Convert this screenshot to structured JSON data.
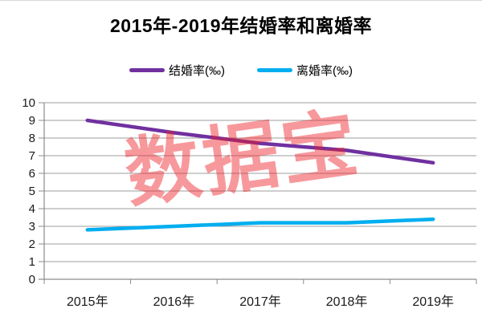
{
  "watermark": "数据宝",
  "chart_data": {
    "type": "line",
    "title": "2015年-2019年结婚率和离婚率",
    "categories": [
      "2015年",
      "2016年",
      "2017年",
      "2018年",
      "2019年"
    ],
    "series": [
      {
        "name": "结婚率(‰)",
        "color": "#7030A0",
        "values": [
          9.0,
          8.3,
          7.7,
          7.3,
          6.6
        ]
      },
      {
        "name": "离婚率(‰)",
        "color": "#00AEEF",
        "values": [
          2.8,
          3.0,
          3.2,
          3.2,
          3.4
        ]
      }
    ],
    "xlabel": "",
    "ylabel": "",
    "ylim": [
      0,
      10
    ],
    "ytick_step": 1,
    "yticks": [
      "0",
      "1",
      "2",
      "3",
      "4",
      "5",
      "6",
      "7",
      "8",
      "9",
      "10"
    ],
    "grid": true,
    "legend_position": "top",
    "gridline_color": "#9d9d9d",
    "axis_color": "#8c8c8c",
    "tick_label_color": "#1a1a1a",
    "watermark_color": "#ED1C24"
  }
}
